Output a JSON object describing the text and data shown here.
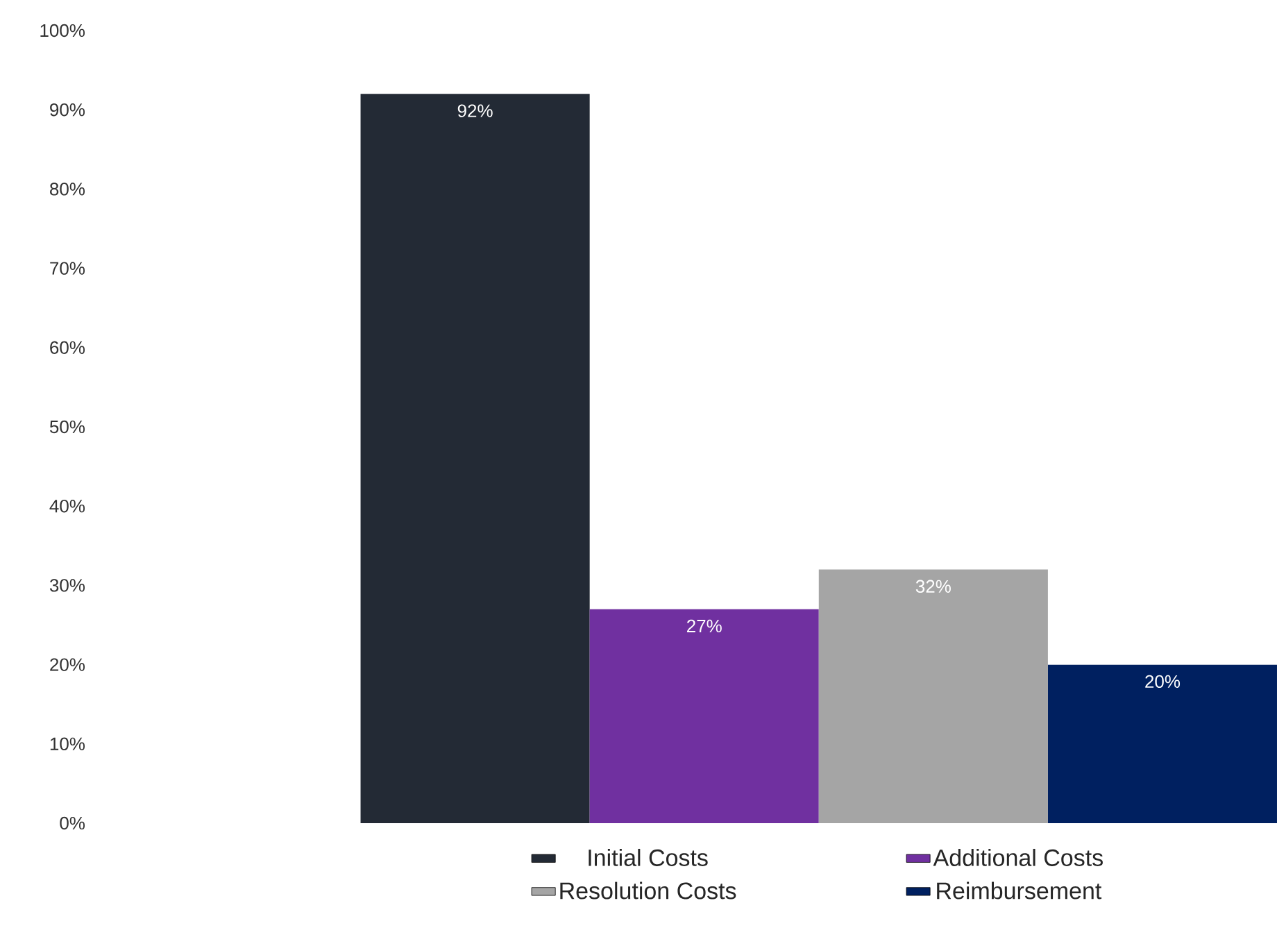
{
  "chart_data": {
    "type": "bar",
    "categories": [
      null
    ],
    "series": [
      {
        "name": "Initial Costs",
        "color": "#232a35",
        "values": [
          92
        ],
        "value_labels": [
          "92%"
        ]
      },
      {
        "name": "Additional Costs",
        "color": "#7030a0",
        "values": [
          27
        ],
        "value_labels": [
          "27%"
        ]
      },
      {
        "name": "Resolution Costs",
        "color": "#a5a5a5",
        "values": [
          32
        ],
        "value_labels": [
          "32%"
        ]
      },
      {
        "name": "Reimbursement",
        "color": "#002060",
        "values": [
          20
        ],
        "value_labels": [
          "20%"
        ]
      }
    ],
    "ylim": [
      0,
      100
    ],
    "yticks": [
      {
        "value": 0,
        "label": "0%"
      },
      {
        "value": 10,
        "label": "10%"
      },
      {
        "value": 20,
        "label": "20%"
      },
      {
        "value": 30,
        "label": "30%"
      },
      {
        "value": 40,
        "label": "40%"
      },
      {
        "value": 50,
        "label": "50%"
      },
      {
        "value": 60,
        "label": "60%"
      },
      {
        "value": 70,
        "label": "70%"
      },
      {
        "value": 80,
        "label": "80%"
      },
      {
        "value": 90,
        "label": "90%"
      },
      {
        "value": 100,
        "label": "100%"
      }
    ],
    "legend": "bottom",
    "grid": false
  }
}
